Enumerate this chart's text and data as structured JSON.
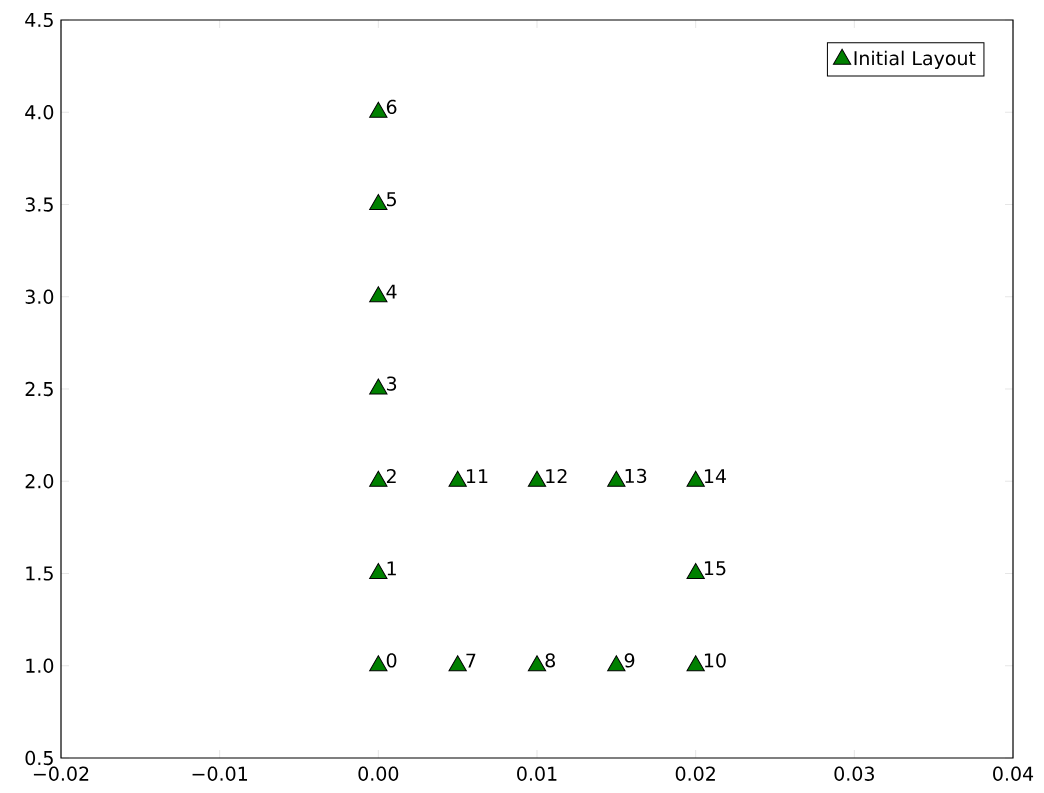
{
  "chart_data": {
    "type": "scatter",
    "xlim": [
      -0.02,
      0.04
    ],
    "ylim": [
      0.5,
      4.5
    ],
    "xticks": [
      {
        "value": -0.02,
        "label": "−0.02"
      },
      {
        "value": -0.01,
        "label": "−0.01"
      },
      {
        "value": 0,
        "label": "0.00"
      },
      {
        "value": 0.01,
        "label": "0.01"
      },
      {
        "value": 0.02,
        "label": "0.02"
      },
      {
        "value": 0.03,
        "label": "0.03"
      },
      {
        "value": 0.04,
        "label": "0.04"
      }
    ],
    "yticks": [
      {
        "value": 0.5,
        "label": "0.5"
      },
      {
        "value": 1.0,
        "label": "1.0"
      },
      {
        "value": 1.5,
        "label": "1.5"
      },
      {
        "value": 2.0,
        "label": "2.0"
      },
      {
        "value": 2.5,
        "label": "2.5"
      },
      {
        "value": 3.0,
        "label": "3.0"
      },
      {
        "value": 3.5,
        "label": "3.5"
      },
      {
        "value": 4.0,
        "label": "4.0"
      },
      {
        "value": 4.5,
        "label": "4.5"
      }
    ],
    "series": [
      {
        "name": "Initial Layout",
        "color": "#008000",
        "x": [
          0,
          0,
          0,
          0,
          0,
          0,
          0,
          0.005,
          0.01,
          0.015,
          0.02,
          0.005,
          0.01,
          0.015,
          0.02,
          0.02
        ],
        "values": [
          1,
          1.5,
          2,
          2.5,
          3,
          3.5,
          4,
          1,
          1,
          1,
          1,
          2,
          2,
          2,
          2,
          1.5
        ]
      }
    ],
    "marker": "triangle",
    "legend": "top right",
    "grid": false,
    "annotations": [
      {
        "text": "0",
        "x": 0,
        "y": 1
      },
      {
        "text": "1",
        "x": 0,
        "y": 1.5
      },
      {
        "text": "2",
        "x": 0,
        "y": 2
      },
      {
        "text": "3",
        "x": 0,
        "y": 2.5
      },
      {
        "text": "4",
        "x": 0,
        "y": 3
      },
      {
        "text": "5",
        "x": 0,
        "y": 3.5
      },
      {
        "text": "6",
        "x": 0,
        "y": 4
      },
      {
        "text": "7",
        "x": 0.005,
        "y": 1
      },
      {
        "text": "8",
        "x": 0.01,
        "y": 1
      },
      {
        "text": "9",
        "x": 0.015,
        "y": 1
      },
      {
        "text": "10",
        "x": 0.02,
        "y": 1
      },
      {
        "text": "11",
        "x": 0.005,
        "y": 2
      },
      {
        "text": "12",
        "x": 0.01,
        "y": 2
      },
      {
        "text": "13",
        "x": 0.015,
        "y": 2
      },
      {
        "text": "14",
        "x": 0.02,
        "y": 2
      },
      {
        "text": "15",
        "x": 0.02,
        "y": 1.5
      }
    ]
  }
}
